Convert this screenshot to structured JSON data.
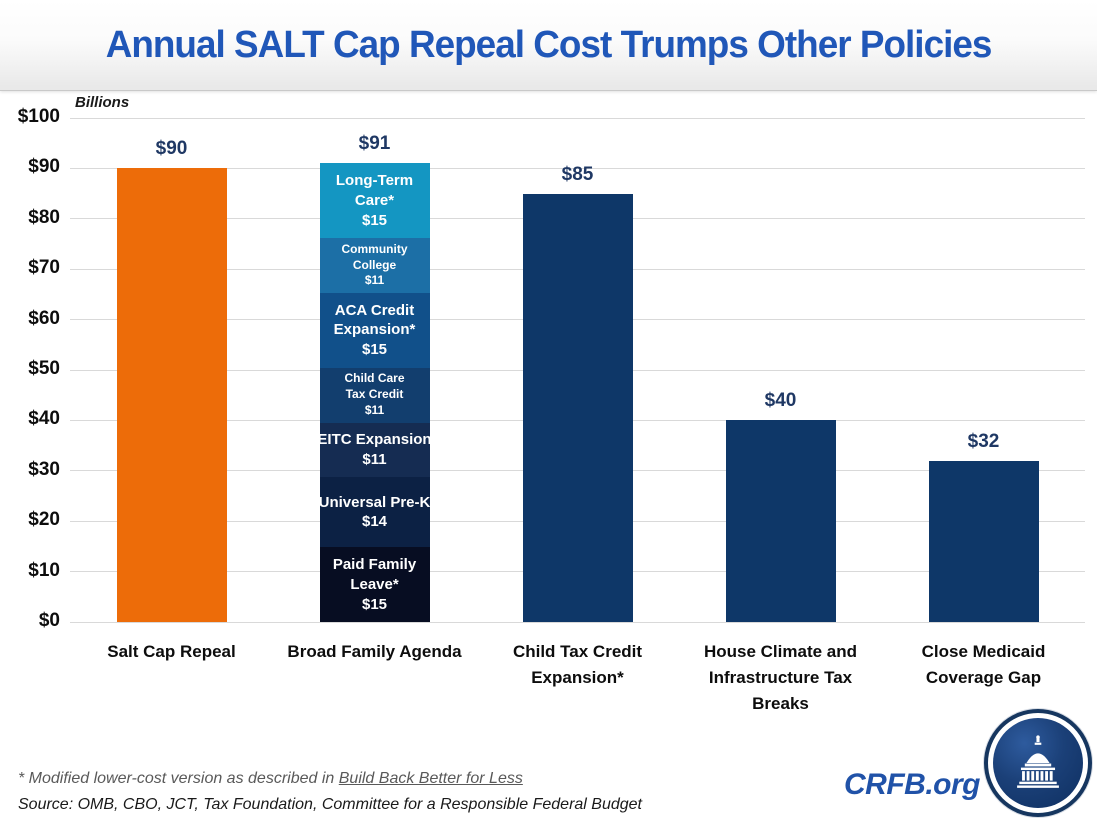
{
  "header": {
    "title": "Annual SALT Cap Repeal Cost Trumps Other Policies"
  },
  "chart_data": {
    "type": "bar",
    "title": "Annual SALT Cap Repeal Cost Trumps Other Policies",
    "ylabel": "Billions",
    "xlabel": "",
    "ylim": [
      0,
      100
    ],
    "grid": true,
    "ytick_labels": [
      "$0",
      "$10",
      "$20",
      "$30",
      "$40",
      "$50",
      "$60",
      "$70",
      "$80",
      "$90",
      "$100"
    ],
    "categories": [
      "Salt Cap Repeal",
      "Broad Family Agenda",
      "Child Tax Credit Expansion*",
      "House Climate and Infrastructure Tax Breaks",
      "Close Medicaid Coverage Gap"
    ],
    "values": [
      90,
      91,
      85,
      40,
      32
    ],
    "value_labels": [
      "$90",
      "$91",
      "$85",
      "$40",
      "$32"
    ],
    "bar_colors": [
      "#ED6C09",
      "stacked",
      "#0E3768",
      "#0E3768",
      "#0E3768"
    ],
    "stacked_segments": [
      {
        "label_lines": [
          "Long-Term",
          "Care*"
        ],
        "value": 15,
        "value_label": "$15",
        "color": "#1496C2"
      },
      {
        "label_lines": [
          "Community",
          "College"
        ],
        "value": 11,
        "value_label": "$11",
        "color": "#1C6FA6"
      },
      {
        "label_lines": [
          "ACA Credit",
          "Expansion*"
        ],
        "value": 15,
        "value_label": "$15",
        "color": "#11508A"
      },
      {
        "label_lines": [
          "Child Care",
          "Tax Credit"
        ],
        "value": 11,
        "value_label": "$11",
        "color": "#123E6E"
      },
      {
        "label_lines": [
          "EITC Expansion"
        ],
        "value": 11,
        "value_label": "$11",
        "color": "#152C52"
      },
      {
        "label_lines": [
          "Universal Pre-K"
        ],
        "value": 14,
        "value_label": "$14",
        "color": "#0C2144"
      },
      {
        "label_lines": [
          "Paid Family",
          "Leave*"
        ],
        "value": 15,
        "value_label": "$15",
        "color": "#070D22"
      }
    ]
  },
  "footer": {
    "footnote_prefix": "* Modified lower-cost version as described in ",
    "footnote_link": "Build Back Better for Less",
    "source": "Source: OMB, CBO, JCT, Tax Foundation, Committee for a Responsible Federal Budget",
    "brand": "CRFB.org"
  }
}
